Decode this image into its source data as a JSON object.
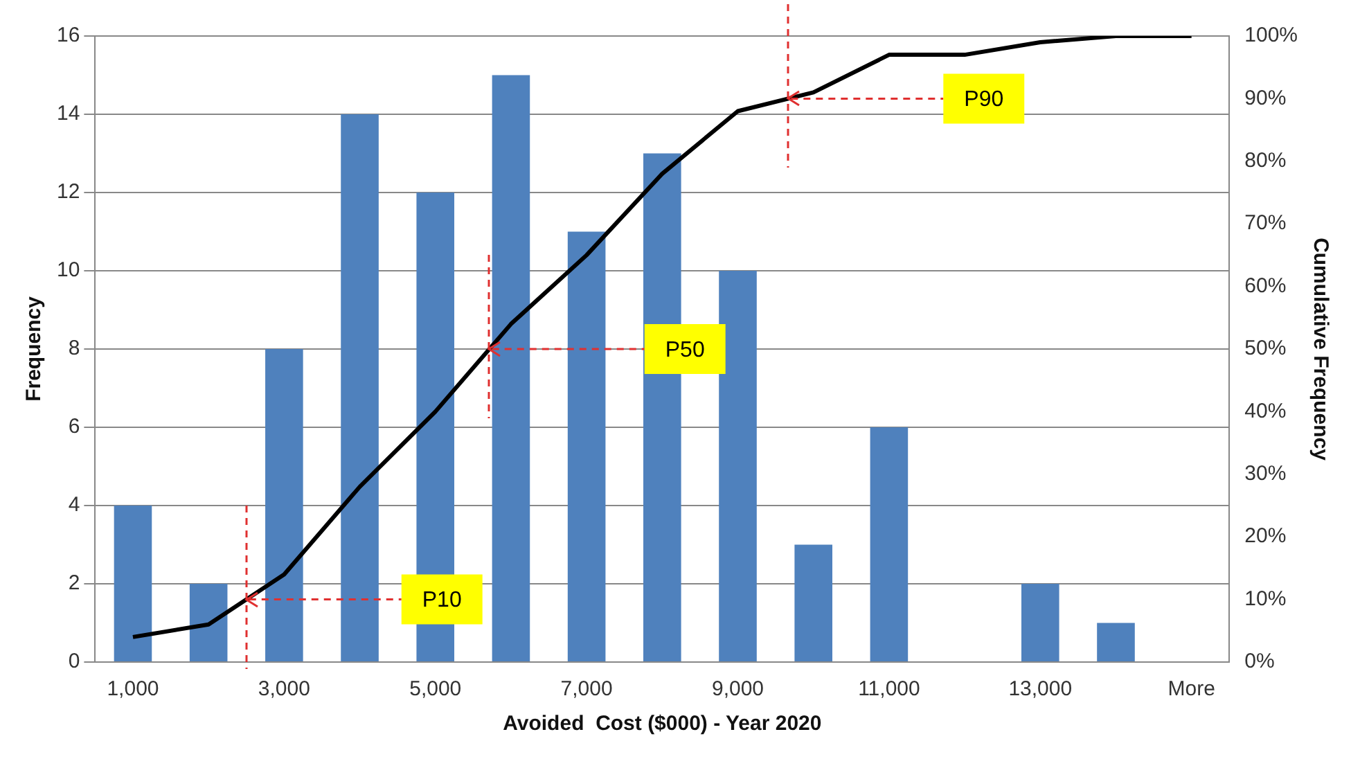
{
  "chart_data": {
    "type": "bar",
    "xlabel": "Avoided  Cost ($000) - Year 2020",
    "ylabel": "Frequency",
    "y2label": "Cumulative Frequency",
    "categories": [
      "1,000",
      null,
      "3,000",
      null,
      "5,000",
      null,
      "7,000",
      null,
      "9,000",
      null,
      "11,000",
      null,
      "13,000",
      null,
      "More"
    ],
    "series": [
      {
        "color": "#4f81bd",
        "values": [
          4,
          2,
          8,
          14,
          12,
          15,
          11,
          13,
          10,
          3,
          6,
          0,
          2,
          1,
          0
        ]
      },
      {
        "type": "line",
        "axis": "y2",
        "color": "#000000",
        "values": [
          4,
          6,
          14,
          28,
          40,
          54,
          65,
          78,
          88,
          91,
          97,
          97,
          99,
          100,
          100
        ]
      }
    ],
    "ylim": [
      0,
      16
    ],
    "yticks": [
      0,
      2,
      4,
      6,
      8,
      10,
      12,
      14,
      16
    ],
    "y2lim": [
      0,
      100
    ],
    "y2ticks": [
      {
        "value": 0,
        "label": "0%"
      },
      {
        "value": 10,
        "label": "10%"
      },
      {
        "value": 20,
        "label": "20%"
      },
      {
        "value": 30,
        "label": "30%"
      },
      {
        "value": 40,
        "label": "40%"
      },
      {
        "value": 50,
        "label": "50%"
      },
      {
        "value": 60,
        "label": "60%"
      },
      {
        "value": 70,
        "label": "70%"
      },
      {
        "value": 80,
        "label": "80%"
      },
      {
        "value": 90,
        "label": "90%"
      },
      {
        "value": 100,
        "label": "100%"
      }
    ],
    "grid": "y",
    "ref_lines": [
      {
        "axis": "y2",
        "value": 10,
        "label": "P10",
        "color": "#e03030",
        "line_style": "dashed"
      },
      {
        "axis": "y2",
        "value": 50,
        "label": "P50",
        "color": "#e03030",
        "line_style": "dashed"
      },
      {
        "axis": "y2",
        "value": 90,
        "label": "P90",
        "color": "#e03030",
        "line_style": "dashed"
      }
    ]
  }
}
